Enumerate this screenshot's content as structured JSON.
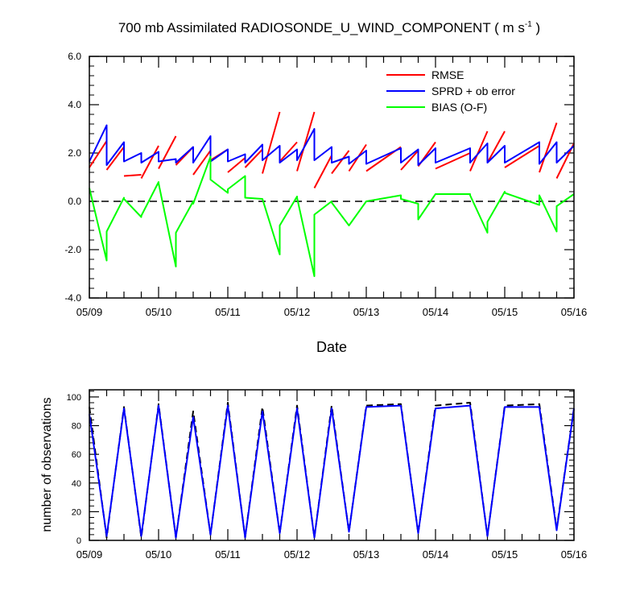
{
  "chart_data": [
    {
      "type": "line",
      "title": "700 mb Assimilated RADIOSONDE_U_WIND_COMPONENT ( m s",
      "title_superscript": "-1",
      "title_suffix": " )",
      "xlabel": "Date",
      "ylabel": "",
      "ylim": [
        -4,
        6
      ],
      "yticks": [
        "-4.0",
        "-2.0",
        "0.0",
        "2.0",
        "4.0",
        "6.0"
      ],
      "xlim": [
        "2014-05-09",
        "2014-05-16"
      ],
      "xticks": [
        "05/09",
        "05/10",
        "05/11",
        "05/12",
        "05/13",
        "05/14",
        "05/15",
        "05/16"
      ],
      "legend_position": "top-right",
      "reference_line": {
        "y": 0,
        "style": "dashed"
      },
      "colors": {
        "RMSE": "#ff0000",
        "SPRD + ob error": "#0000ff",
        "BIAS (O-F)": "#00ff00"
      },
      "x": [
        "05/09 00Z",
        "05/09 06Z",
        "05/09 12Z",
        "05/09 18Z",
        "05/10 00Z",
        "05/10 06Z",
        "05/10 12Z",
        "05/10 18Z",
        "05/11 00Z",
        "05/11 06Z",
        "05/11 12Z",
        "05/11 18Z",
        "05/12 00Z",
        "05/12 06Z",
        "05/12 12Z",
        "05/12 18Z",
        "05/13 00Z",
        "05/13 12Z",
        "05/13 18Z",
        "05/14 00Z",
        "05/14 12Z",
        "05/14 18Z",
        "05/15 00Z",
        "05/15 12Z",
        "05/15 18Z",
        "05/16 00Z"
      ],
      "x_days": [
        0,
        0.25,
        0.5,
        0.75,
        1,
        1.25,
        1.5,
        1.75,
        2,
        2.25,
        2.5,
        2.75,
        3,
        3.25,
        3.5,
        3.75,
        4,
        4.5,
        4.75,
        5,
        5.5,
        5.75,
        6,
        6.5,
        6.75,
        7
      ],
      "series": [
        {
          "name": "RMSE",
          "segments": [
            {
              "x": [
                0,
                0.25
              ],
              "y": [
                1.4,
                2.5
              ]
            },
            {
              "x": [
                0.25,
                0.5
              ],
              "y": [
                1.3,
                2.25
              ]
            },
            {
              "x": [
                0.5,
                0.75
              ],
              "y": [
                1.05,
                1.1
              ]
            },
            {
              "x": [
                0.75,
                1.0
              ],
              "y": [
                0.95,
                2.3
              ]
            },
            {
              "x": [
                1.0,
                1.25
              ],
              "y": [
                1.35,
                2.7
              ]
            },
            {
              "x": [
                1.25,
                1.5
              ],
              "y": [
                1.5,
                2.25
              ]
            },
            {
              "x": [
                1.5,
                1.75
              ],
              "y": [
                1.1,
                2.1
              ]
            },
            {
              "x": [
                1.75,
                2.0
              ],
              "y": [
                1.7,
                2.15
              ]
            },
            {
              "x": [
                2.0,
                2.25
              ],
              "y": [
                1.2,
                1.8
              ]
            },
            {
              "x": [
                2.25,
                2.5
              ],
              "y": [
                1.4,
                2.15
              ]
            },
            {
              "x": [
                2.5,
                2.75
              ],
              "y": [
                1.15,
                3.7
              ]
            },
            {
              "x": [
                2.75,
                3.0
              ],
              "y": [
                1.65,
                2.45
              ]
            },
            {
              "x": [
                3.0,
                3.25
              ],
              "y": [
                1.25,
                3.7
              ]
            },
            {
              "x": [
                3.25,
                3.5
              ],
              "y": [
                0.55,
                1.9
              ]
            },
            {
              "x": [
                3.5,
                3.75
              ],
              "y": [
                1.15,
                2.1
              ]
            },
            {
              "x": [
                3.75,
                4.0
              ],
              "y": [
                1.25,
                2.35
              ]
            },
            {
              "x": [
                4.0,
                4.5
              ],
              "y": [
                1.25,
                2.25
              ]
            },
            {
              "x": [
                4.5,
                4.75
              ],
              "y": [
                1.3,
                2.1
              ]
            },
            {
              "x": [
                4.75,
                5.0
              ],
              "y": [
                1.45,
                2.45
              ]
            },
            {
              "x": [
                5.0,
                5.5
              ],
              "y": [
                1.35,
                2.0
              ]
            },
            {
              "x": [
                5.5,
                5.75
              ],
              "y": [
                1.25,
                2.9
              ]
            },
            {
              "x": [
                5.75,
                6.0
              ],
              "y": [
                1.6,
                2.9
              ]
            },
            {
              "x": [
                6.0,
                6.5
              ],
              "y": [
                1.4,
                2.3
              ]
            },
            {
              "x": [
                6.5,
                6.75
              ],
              "y": [
                1.2,
                3.25
              ]
            },
            {
              "x": [
                6.75,
                7.0
              ],
              "y": [
                0.95,
                2.4
              ]
            }
          ]
        },
        {
          "name": "SPRD + ob error",
          "x": [
            0,
            0.25,
            0.25,
            0.5,
            0.5,
            0.75,
            0.75,
            1,
            1,
            1.25,
            1.25,
            1.5,
            1.5,
            1.75,
            1.75,
            2,
            2,
            2.25,
            2.25,
            2.5,
            2.5,
            2.75,
            2.75,
            3,
            3,
            3.25,
            3.25,
            3.5,
            3.5,
            3.75,
            3.75,
            4,
            4,
            4.5,
            4.5,
            4.75,
            4.75,
            5,
            5,
            5.5,
            5.5,
            5.75,
            5.75,
            6,
            6,
            6.5,
            6.5,
            6.75,
            6.75,
            7
          ],
          "y": [
            1.65,
            3.15,
            1.5,
            2.45,
            1.65,
            2.0,
            1.6,
            2.05,
            1.65,
            1.75,
            1.6,
            2.25,
            1.6,
            2.7,
            1.65,
            2.15,
            1.65,
            1.95,
            1.6,
            2.35,
            1.7,
            2.3,
            1.6,
            2.15,
            1.7,
            3.0,
            1.7,
            2.25,
            1.6,
            1.85,
            1.55,
            2.1,
            1.55,
            2.2,
            1.6,
            2.15,
            1.5,
            2.2,
            1.6,
            2.2,
            1.6,
            2.4,
            1.6,
            2.3,
            1.6,
            2.45,
            1.55,
            2.45,
            1.6,
            2.3
          ]
        },
        {
          "name": "BIAS (O-F)",
          "x": [
            0,
            0.25,
            0.25,
            0.5,
            0.5,
            0.75,
            0.75,
            1,
            1,
            1.25,
            1.25,
            1.5,
            1.5,
            1.75,
            1.75,
            2,
            2,
            2.25,
            2.25,
            2.5,
            2.5,
            2.75,
            2.75,
            3,
            3,
            3.25,
            3.25,
            3.5,
            3.5,
            3.75,
            3.75,
            4,
            4,
            4.5,
            4.5,
            4.75,
            4.75,
            5,
            5,
            5.5,
            5.5,
            5.75,
            5.75,
            6,
            6,
            6.5,
            6.5,
            6.75,
            6.75,
            7
          ],
          "y": [
            0.55,
            -2.45,
            -1.25,
            0.15,
            0.1,
            -0.65,
            -0.6,
            0.8,
            0.75,
            -2.7,
            -1.3,
            0.0,
            -0.1,
            1.85,
            0.9,
            0.35,
            0.5,
            1.05,
            0.15,
            0.1,
            0.1,
            -2.2,
            -1.0,
            0.2,
            0.15,
            -3.1,
            -0.55,
            0.0,
            -0.05,
            -1.0,
            -1.0,
            0.0,
            0.0,
            0.25,
            0.1,
            -0.1,
            -0.75,
            0.3,
            0.3,
            0.3,
            0.25,
            -1.3,
            -0.85,
            0.4,
            0.35,
            -0.15,
            0.25,
            -1.25,
            -0.2,
            0.3
          ]
        }
      ]
    },
    {
      "type": "line",
      "title": "",
      "xlabel": "",
      "ylabel": "number of observations",
      "ylim": [
        0,
        105
      ],
      "yticks": [
        "0",
        "20",
        "40",
        "60",
        "80",
        "100"
      ],
      "xlim": [
        "2014-05-09",
        "2014-05-16"
      ],
      "xticks": [
        "05/09",
        "05/10",
        "05/11",
        "05/12",
        "05/13",
        "05/14",
        "05/15",
        "05/16"
      ],
      "colors": {
        "possible": "#000000",
        "used": "#0000ff"
      },
      "series": [
        {
          "style": "dashed",
          "color": "#000000",
          "x": [
            0,
            0.25,
            0.5,
            0.75,
            1,
            1.25,
            1.5,
            1.75,
            2,
            2.25,
            2.5,
            2.75,
            3,
            3.25,
            3.5,
            3.75,
            4,
            4.5,
            4.75,
            5,
            5.5,
            5.75,
            6,
            6.5,
            6.75,
            7
          ],
          "y": [
            93,
            2,
            93,
            2,
            95,
            2,
            90,
            4,
            96,
            2,
            93,
            5,
            94,
            2,
            94,
            6,
            94,
            95,
            5,
            94,
            96,
            3,
            94,
            95,
            8,
            92
          ]
        },
        {
          "style": "solid",
          "color": "#0000ff",
          "x": [
            0,
            0.25,
            0.5,
            0.75,
            1,
            1.25,
            1.5,
            1.75,
            2,
            2.25,
            2.5,
            2.75,
            3,
            3.25,
            3.5,
            3.75,
            4,
            4.5,
            4.75,
            5,
            5.5,
            5.75,
            6,
            6.5,
            6.75,
            7
          ],
          "y": [
            88,
            3,
            92,
            3,
            94,
            2,
            86,
            4,
            94,
            2,
            90,
            5,
            92,
            2,
            92,
            6,
            93,
            94,
            5,
            92,
            94,
            3,
            93,
            93,
            7,
            92
          ]
        }
      ]
    }
  ]
}
